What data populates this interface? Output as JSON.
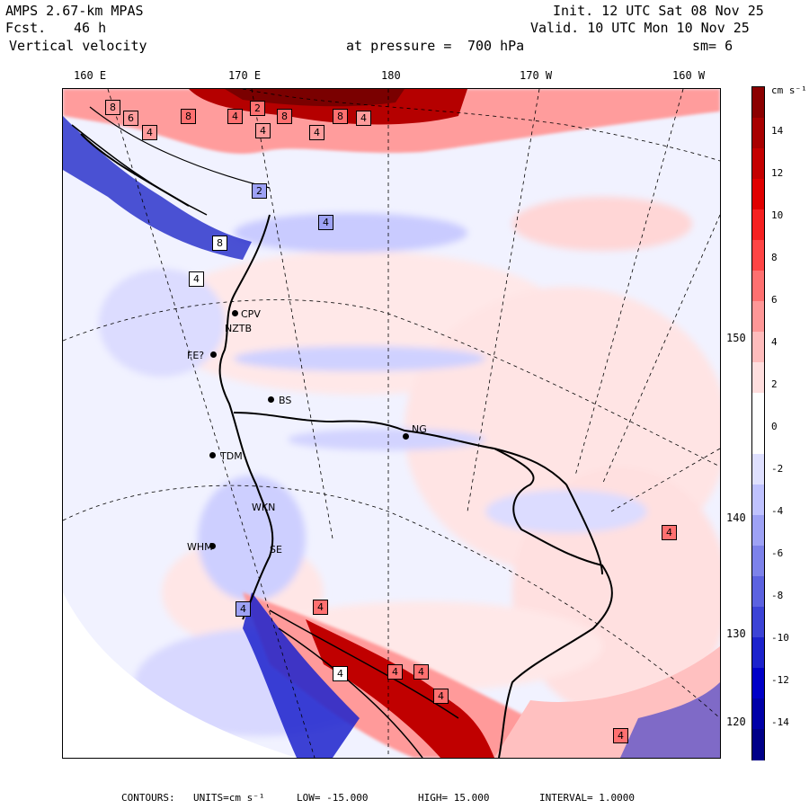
{
  "header": {
    "model": "AMPS 2.67-km MPAS",
    "forecast_label": "Fcst.",
    "forecast_hours": "46 h",
    "field": "Vertical velocity",
    "level_label": "at pressure =",
    "level_value": "700 hPa",
    "init": "Init. 12 UTC Sat 08 Nov 25",
    "valid": "Valid. 10 UTC Mon 10 Nov 25",
    "smoothing": "sm= 6"
  },
  "longitude_labels": [
    "160 E",
    "170 E",
    "180",
    "170 W",
    "160 W"
  ],
  "latitude_labels": [
    "150 W",
    "140 W",
    "130 W",
    "120 W"
  ],
  "colorbar": {
    "units": "cm s⁻¹",
    "labels": [
      "14",
      "12",
      "10",
      "8",
      "6",
      "4",
      "2",
      "0",
      "-2",
      "-4",
      "-6",
      "-8",
      "-10",
      "-12",
      "-14"
    ],
    "colors": [
      "#8b0000",
      "#a80000",
      "#c40000",
      "#e00000",
      "#f52020",
      "#ff4545",
      "#ff7070",
      "#ff9797",
      "#ffbcbc",
      "#ffdede",
      "#ffffff",
      "#ffffff",
      "#dfe0ff",
      "#bfc2ff",
      "#9ea2f5",
      "#7d82ea",
      "#5c62e0",
      "#3c43d6",
      "#1c22cc",
      "#0000c8",
      "#0000a8",
      "#000088"
    ]
  },
  "stations": [
    "CPV",
    "NZTB",
    "FE?",
    "BS",
    "TDM",
    "WKN",
    "WHM",
    "SE",
    "NG"
  ],
  "contour_box_labels": [
    "8",
    "6",
    "8",
    "4",
    "2",
    "8",
    "4",
    "8",
    "4",
    "4",
    "4",
    "2",
    "4",
    "8",
    "4",
    "4",
    "4",
    "4",
    "4",
    "4",
    "4",
    "4",
    "4"
  ],
  "footer": {
    "contours": "CONTOURS:",
    "units_label": "UNITS=cm s⁻¹",
    "low": "LOW= -15.000",
    "high": "HIGH= 15.000",
    "interval": "INTERVAL= 1.0000"
  }
}
